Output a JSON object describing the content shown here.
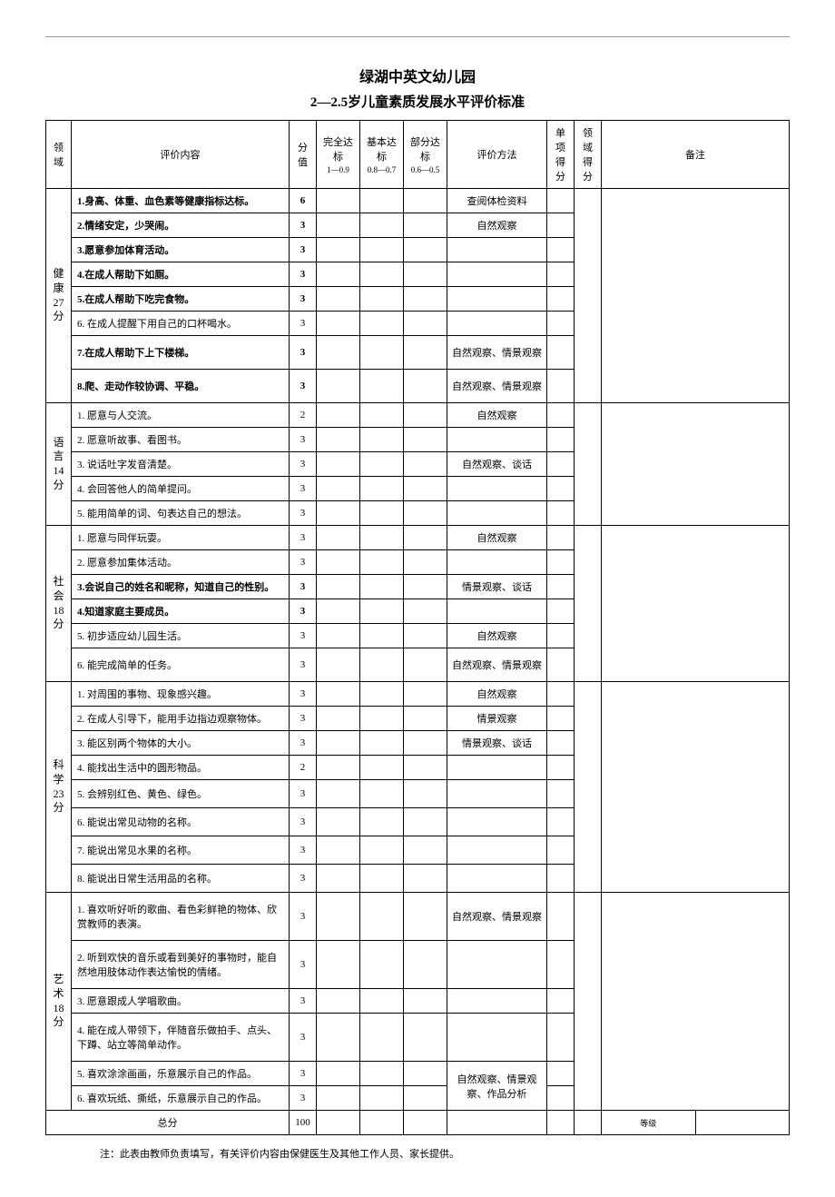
{
  "page": {
    "title": "绿湖中英文幼儿园",
    "subtitle": "2—2.5岁儿童素质发展水平评价标准",
    "footnote": "注：此表由教师负责填写，有关评价内容由保健医生及其他工作人员、家长提供。"
  },
  "headers": {
    "domain": "领域",
    "content": "评价内容",
    "score": "分值",
    "full": "完全达标",
    "full_sub": "1—0.9",
    "basic": "基本达标",
    "basic_sub": "0.8—0.7",
    "partial": "部分达标",
    "partial_sub": "0.6—0.5",
    "method": "评价方法",
    "item_score": "单项得分",
    "domain_score": "领域得分",
    "remark": "备注"
  },
  "domains": [
    {
      "label_lines": [
        "健",
        "康",
        "27",
        "分"
      ],
      "rows": [
        {
          "content": "1.身高、体重、血色素等健康指标达标。",
          "score": "6",
          "method": "查阅体检资料",
          "bold": true
        },
        {
          "content": "2.情绪安定，少哭闹。",
          "score": "3",
          "method": "自然观察",
          "bold": true
        },
        {
          "content": "3.愿意参加体育活动。",
          "score": "3",
          "method": "",
          "bold": true
        },
        {
          "content": "4.在成人帮助下如厕。",
          "score": "3",
          "method": "",
          "bold": true
        },
        {
          "content": "5.在成人帮助下吃完食物。",
          "score": "3",
          "method": "",
          "bold": true
        },
        {
          "content": "6. 在成人提醒下用自己的口杯喝水。",
          "score": "3",
          "method": ""
        },
        {
          "content": "7.在成人帮助下上下楼梯。",
          "score": "3",
          "method": "自然观察、情景观察",
          "bold": true,
          "tall": true
        },
        {
          "content": "8.爬、走动作较协调、平稳。",
          "score": "3",
          "method": "自然观察、情景观察",
          "bold": true,
          "tall": true
        }
      ]
    },
    {
      "label_lines": [
        "语",
        "言",
        "14",
        "分"
      ],
      "rows": [
        {
          "content": "1. 愿意与人交流。",
          "score": "2",
          "method": "自然观察"
        },
        {
          "content": "2. 愿意听故事、看图书。",
          "score": "3",
          "method": ""
        },
        {
          "content": "3. 说话吐字发音清楚。",
          "score": "3",
          "method": "自然观察、谈话"
        },
        {
          "content": "4. 会回答他人的简单提问。",
          "score": "3",
          "method": ""
        },
        {
          "content": "5. 能用简单的词、句表达自己的想法。",
          "score": "3",
          "method": ""
        }
      ]
    },
    {
      "label_lines": [
        "社",
        "会",
        "18",
        "分"
      ],
      "rows": [
        {
          "content": "1. 愿意与同伴玩耍。",
          "score": "3",
          "method": "自然观察"
        },
        {
          "content": "2. 愿意参加集体活动。",
          "score": "3",
          "method": ""
        },
        {
          "content": "3.会说自己的姓名和昵称，知道自己的性别。",
          "score": "3",
          "method": "情景观察、谈话",
          "bold": true
        },
        {
          "content": "4.知道家庭主要成员。",
          "score": "3",
          "method": "",
          "bold": true
        },
        {
          "content": "5. 初步适应幼儿园生活。",
          "score": "3",
          "method": "自然观察"
        },
        {
          "content": "6. 能完成简单的任务。",
          "score": "3",
          "method": "自然观察、情景观察",
          "tall": true
        }
      ]
    },
    {
      "label_lines": [
        "科",
        "学",
        "23",
        "分"
      ],
      "rows": [
        {
          "content": "1. 对周围的事物、现象感兴趣。",
          "score": "3",
          "method": "自然观察"
        },
        {
          "content": "2. 在成人引导下，能用手边指边观察物体。",
          "score": "3",
          "method": "情景观察"
        },
        {
          "content": "3. 能区别两个物体的大小。",
          "score": "3",
          "method": "情景观察、谈话"
        },
        {
          "content": "4. 能找出生活中的圆形物品。",
          "score": "2",
          "method": ""
        },
        {
          "content": "5. 会辨别红色、黄色、绿色。",
          "score": "3",
          "method": "",
          "med": true
        },
        {
          "content": "6. 能说出常见动物的名称。",
          "score": "3",
          "method": "",
          "med": true
        },
        {
          "content": "7. 能说出常见水果的名称。",
          "score": "3",
          "method": "",
          "med": true
        },
        {
          "content": "8. 能说出日常生活用品的名称。",
          "score": "3",
          "method": "",
          "med": true
        }
      ]
    },
    {
      "label_lines": [
        "艺",
        "术",
        "18",
        "分"
      ],
      "rows": [
        {
          "content": "1. 喜欢听好听的歌曲、看色彩鲜艳的物体、欣赏教师的表演。",
          "score": "3",
          "method": "自然观察、情景观察",
          "tall": true
        },
        {
          "content": "2. 听到欢快的音乐或看到美好的事物时，能自然地用肢体动作表达愉悦的情绪。",
          "score": "3",
          "method": "",
          "tall": true
        },
        {
          "content": "3. 愿意跟成人学唱歌曲。",
          "score": "3",
          "method": ""
        },
        {
          "content": "4. 能在成人带领下，伴随音乐做拍手、点头、下蹲、站立等简单动作。",
          "score": "3",
          "method": "",
          "tall": true
        },
        {
          "content": "5. 喜欢涂涂画画，乐意展示自己的作品。",
          "score": "3",
          "method": "自然观察、情景观察、作品分析",
          "method_rowspan": 2
        },
        {
          "content": "6. 喜欢玩纸、撕纸，乐意展示自己的作品。",
          "score": "3",
          "method": ""
        }
      ]
    }
  ],
  "total": {
    "label": "总分",
    "score": "100",
    "remark_label": "等级"
  },
  "colors": {
    "background": "#ffffff",
    "text": "#000000",
    "border": "#000000",
    "topline": "#999999"
  },
  "fonts": {
    "body_pt": 11,
    "title_pt": 16,
    "subtitle_pt": 15,
    "header_sub_pt": 9
  }
}
